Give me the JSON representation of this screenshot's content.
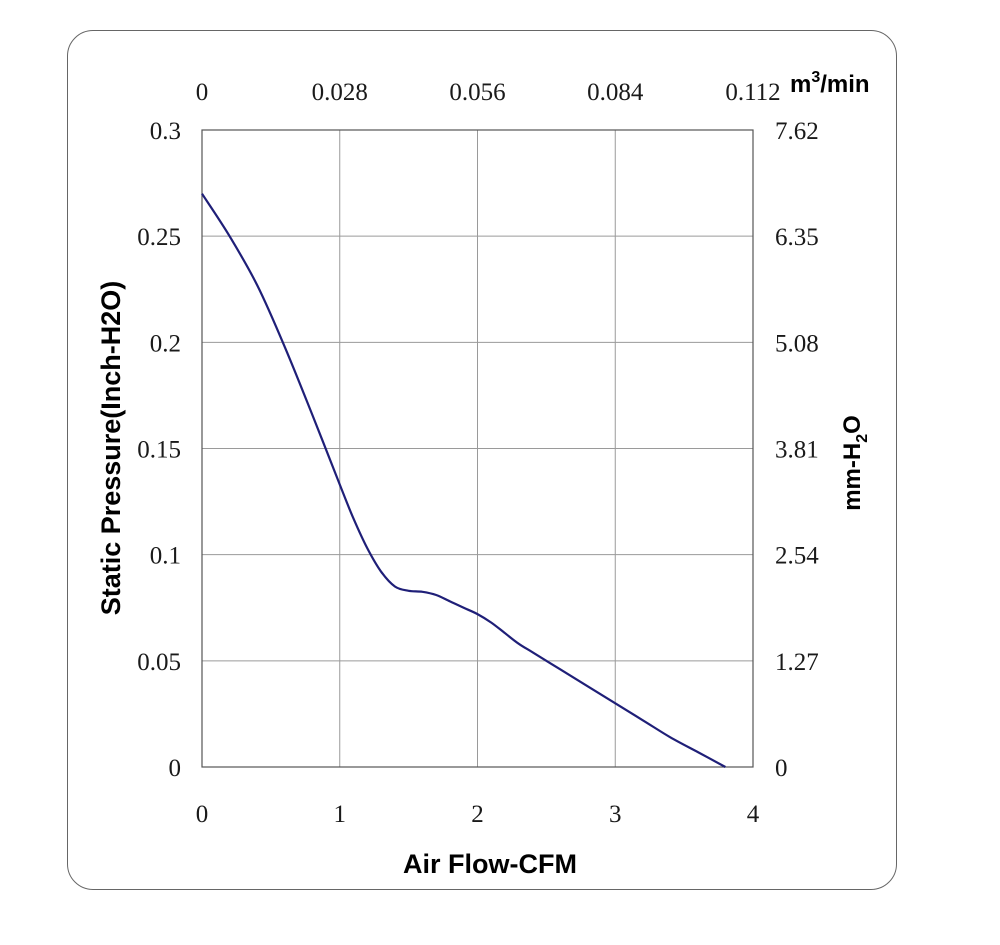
{
  "chart_data": {
    "type": "line",
    "xlabel": "Air Flow-CFM",
    "ylabel": "Static Pressure(Inch-H2O)",
    "xlim": [
      0,
      4
    ],
    "ylim": [
      0,
      0.3
    ],
    "x_ticks": [
      "0",
      "1",
      "2",
      "3",
      "4"
    ],
    "y_ticks": [
      "0",
      "0.05",
      "0.1",
      "0.15",
      "0.2",
      "0.25",
      "0.3"
    ],
    "top_axis": {
      "unit_base": "m",
      "unit_sup": "3",
      "unit_rest": "/min",
      "ticks": [
        "0",
        "0.028",
        "0.056",
        "0.084",
        "0.112"
      ]
    },
    "right_axis": {
      "label_base": "mm-H",
      "label_sub": "2",
      "label_rest": "O",
      "ticks": [
        "0",
        "1.27",
        "2.54",
        "3.81",
        "5.08",
        "6.35",
        "7.62"
      ]
    },
    "grid": true,
    "colors": {
      "curve": "#1f1f78",
      "grid": "#9a9a9a",
      "frame": "#666666"
    },
    "series": [
      {
        "x": [
          0,
          0.2,
          0.4,
          0.6,
          0.8,
          1.0,
          1.1,
          1.2,
          1.3,
          1.4,
          1.5,
          1.6,
          1.7,
          1.8,
          1.9,
          2.0,
          2.1,
          2.2,
          2.3,
          2.4,
          2.6,
          2.8,
          3.0,
          3.2,
          3.4,
          3.6,
          3.8
        ],
        "y": [
          0.27,
          0.25,
          0.227,
          0.198,
          0.166,
          0.133,
          0.117,
          0.103,
          0.092,
          0.085,
          0.083,
          0.0825,
          0.081,
          0.078,
          0.075,
          0.072,
          0.068,
          0.063,
          0.058,
          0.054,
          0.046,
          0.038,
          0.03,
          0.022,
          0.014,
          0.007,
          0.0
        ]
      }
    ]
  }
}
